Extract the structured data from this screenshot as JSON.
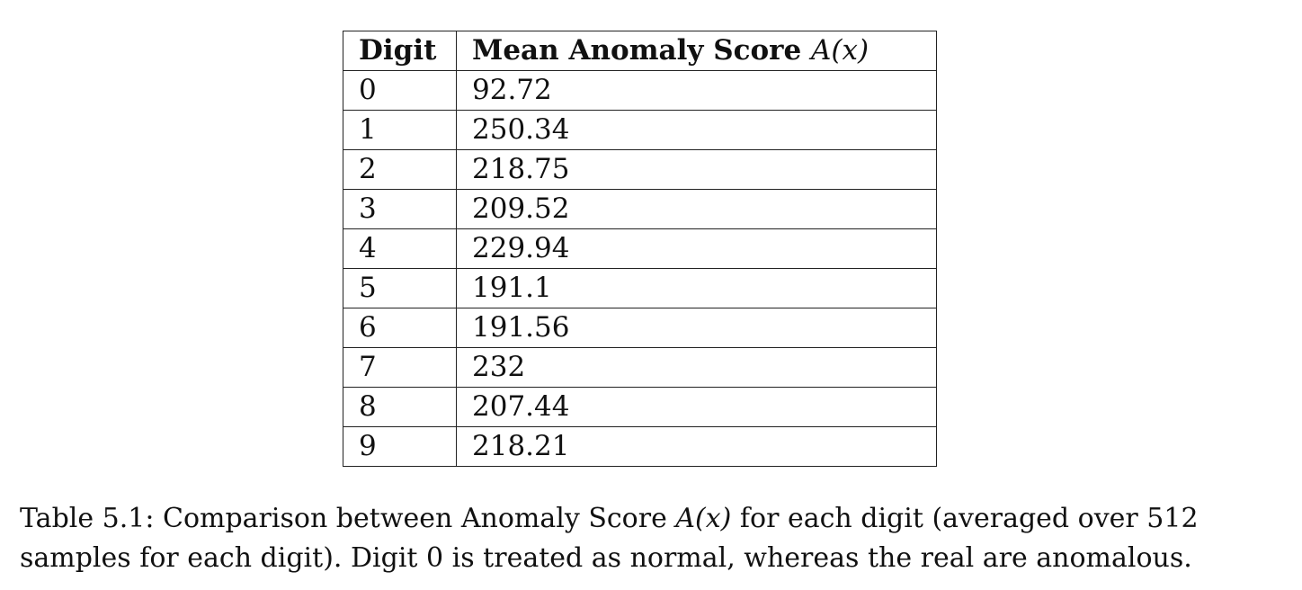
{
  "table": {
    "headers": {
      "digit": "Digit",
      "score": "Mean Anomaly Score",
      "score_symbol": "A(x)"
    },
    "rows": [
      {
        "digit": "0",
        "score": "92.72"
      },
      {
        "digit": "1",
        "score": "250.34"
      },
      {
        "digit": "2",
        "score": "218.75"
      },
      {
        "digit": "3",
        "score": "209.52"
      },
      {
        "digit": "4",
        "score": "229.94"
      },
      {
        "digit": "5",
        "score": "191.1"
      },
      {
        "digit": "6",
        "score": "191.56"
      },
      {
        "digit": "7",
        "score": "232"
      },
      {
        "digit": "8",
        "score": "207.44"
      },
      {
        "digit": "9",
        "score": "218.21"
      }
    ]
  },
  "caption": {
    "prefix": "Table 5.1: Comparison between Anomaly Score ",
    "symbol": "A(x)",
    "suffix": " for each digit (averaged over 512 samples for each digit). Digit 0 is treated as normal, whereas the real are anomalous."
  }
}
